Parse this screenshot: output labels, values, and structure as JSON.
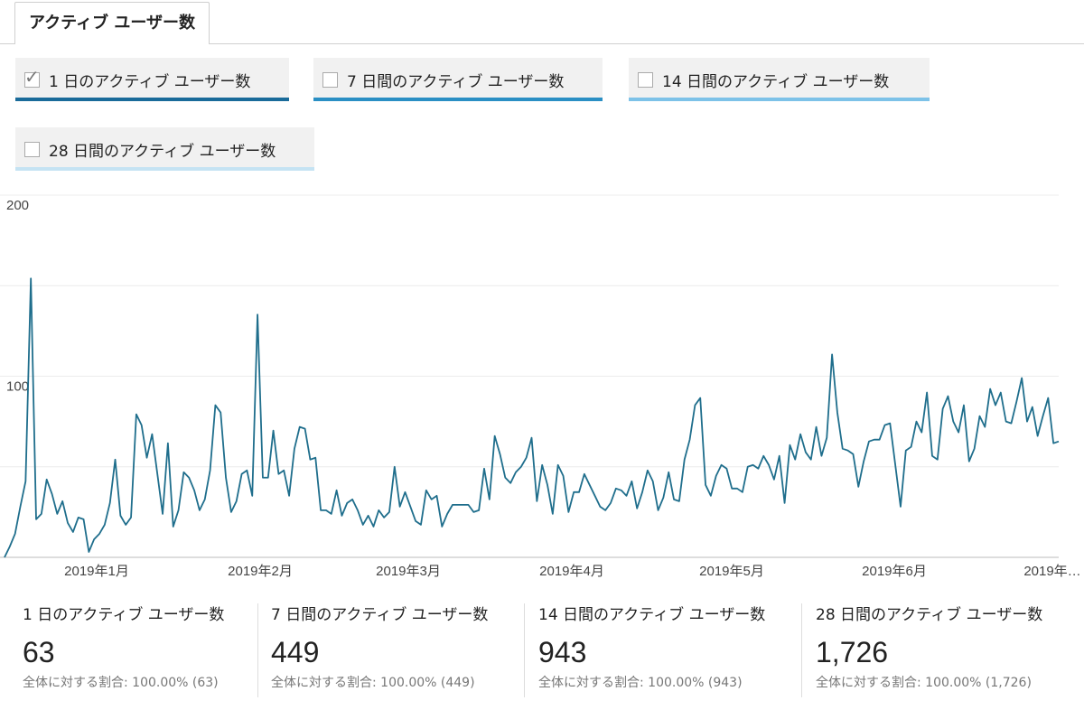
{
  "tab": {
    "label": "アクティブ ユーザー数"
  },
  "metrics": [
    {
      "label": "1 日のアクティブ ユーザー数",
      "checked": true,
      "color": "#1a6b9a"
    },
    {
      "label": "7 日間のアクティブ ユーザー数",
      "checked": false,
      "color": "#2a8fc4"
    },
    {
      "label": "14 日間のアクティブ ユーザー数",
      "checked": false,
      "color": "#7dc2e8"
    },
    {
      "label": "28 日間のアクティブ ユーザー数",
      "checked": false,
      "color": "#c5e3f3"
    }
  ],
  "chart_data": {
    "type": "line",
    "color": "#1f6e8c",
    "ylim": [
      0,
      200
    ],
    "yticks": [
      {
        "value": 200,
        "label": "200"
      },
      {
        "value": 100,
        "label": "100"
      }
    ],
    "grid": true,
    "xlabels": [
      "2019年1月",
      "2019年2月",
      "2019年3月",
      "2019年4月",
      "2019年5月",
      "2019年6月",
      "2019年…"
    ],
    "series": [
      {
        "values": [
          0,
          6,
          13,
          28,
          42,
          154,
          21,
          24,
          43,
          35,
          24,
          31,
          19,
          14,
          22,
          21,
          3,
          10,
          13,
          18,
          30,
          54,
          23,
          18,
          22,
          79,
          73,
          55,
          68,
          46,
          24,
          63,
          17,
          26,
          47,
          44,
          37,
          26,
          32,
          48,
          84,
          80,
          44,
          25,
          31,
          46,
          48,
          34,
          134,
          44,
          44,
          70,
          46,
          48,
          34,
          60,
          72,
          71,
          54,
          55,
          26,
          26,
          24,
          37,
          23,
          30,
          32,
          26,
          18,
          23,
          17,
          26,
          22,
          25,
          50,
          28,
          36,
          28,
          20,
          18,
          37,
          32,
          34,
          17,
          24,
          29,
          29,
          29,
          29,
          25,
          26,
          49,
          32,
          67,
          57,
          44,
          41,
          47,
          50,
          55,
          66,
          31,
          51,
          40,
          24,
          51,
          45,
          25,
          36,
          36,
          46,
          40,
          34,
          28,
          26,
          30,
          38,
          37,
          34,
          42,
          27,
          36,
          48,
          42,
          26,
          33,
          47,
          32,
          31,
          54,
          65,
          84,
          88,
          40,
          34,
          45,
          51,
          49,
          38,
          38,
          36,
          50,
          51,
          49,
          56,
          51,
          43,
          56,
          30,
          62,
          54,
          68,
          58,
          54,
          72,
          56,
          66,
          112,
          80,
          60,
          59,
          57,
          39,
          53,
          64,
          65,
          65,
          73,
          74,
          51,
          28,
          59,
          61,
          75,
          69,
          91,
          56,
          54,
          82,
          89,
          75,
          69,
          84,
          53,
          60,
          78,
          72,
          93,
          84,
          91,
          75,
          74,
          86,
          99,
          75,
          83,
          67,
          78,
          88,
          63,
          64
        ]
      }
    ]
  },
  "stats": [
    {
      "title": "1 日のアクティブ ユーザー数",
      "value": "63",
      "sub": "全体に対する割合: 100.00% (63)"
    },
    {
      "title": "7 日間のアクティブ ユーザー数",
      "value": "449",
      "sub": "全体に対する割合: 100.00% (449)"
    },
    {
      "title": "14 日間のアクティブ ユーザー数",
      "value": "943",
      "sub": "全体に対する割合: 100.00% (943)"
    },
    {
      "title": "28 日間のアクティブ ユーザー数",
      "value": "1,726",
      "sub": "全体に対する割合: 100.00% (1,726)"
    }
  ]
}
